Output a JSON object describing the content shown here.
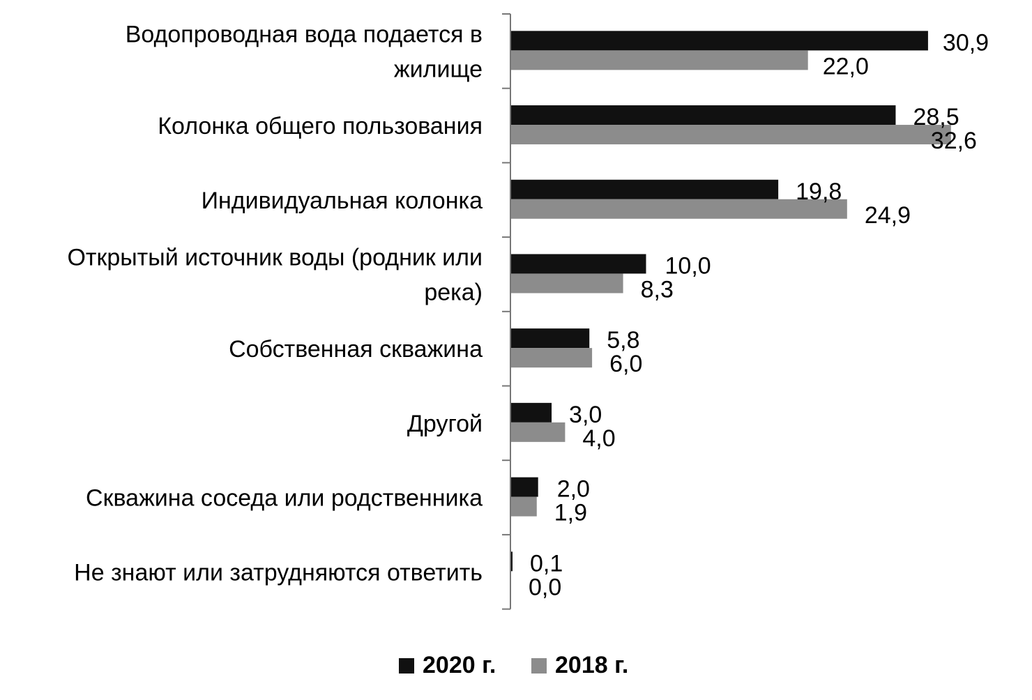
{
  "chart_data": {
    "type": "bar",
    "orientation": "horizontal",
    "categories": [
      "Водопроводная вода подается в жилище",
      "Колонка общего пользования",
      "Индивидуальная колонка",
      "Открытый источник воды (родник или река)",
      "Собственная скважина",
      "Другой",
      "Скважина соседа или родственника",
      "Не знают или затрудняются ответить"
    ],
    "category_lines": [
      [
        "Водопроводная вода подается в",
        "жилище"
      ],
      [
        "Колонка общего пользования"
      ],
      [
        "Индивидуальная колонка"
      ],
      [
        "Открытый источник воды (родник или",
        "река)"
      ],
      [
        "Собственная скважина"
      ],
      [
        "Другой"
      ],
      [
        "Скважина соседа или родственника"
      ],
      [
        "Не знают или затрудняются ответить"
      ]
    ],
    "series": [
      {
        "name": "2020 г.",
        "color": "#111111",
        "values": [
          30.9,
          28.5,
          19.8,
          10.0,
          5.8,
          3.0,
          2.0,
          0.1
        ],
        "labels": [
          "30,9",
          "28,5",
          "19,8",
          "10,0",
          "5,8",
          "3,0",
          "2,0",
          "0,1"
        ]
      },
      {
        "name": "2018 г.",
        "color": "#8c8c8c",
        "values": [
          22.0,
          32.6,
          24.9,
          8.3,
          6.0,
          4.0,
          1.9,
          0.0
        ],
        "labels": [
          "22,0",
          "32,6",
          "24,9",
          "8,3",
          "6,0",
          "4,0",
          "1,9",
          "0,0"
        ]
      }
    ],
    "title": "",
    "xlabel": "",
    "ylabel": "",
    "grid": false,
    "legend_position": "bottom"
  }
}
